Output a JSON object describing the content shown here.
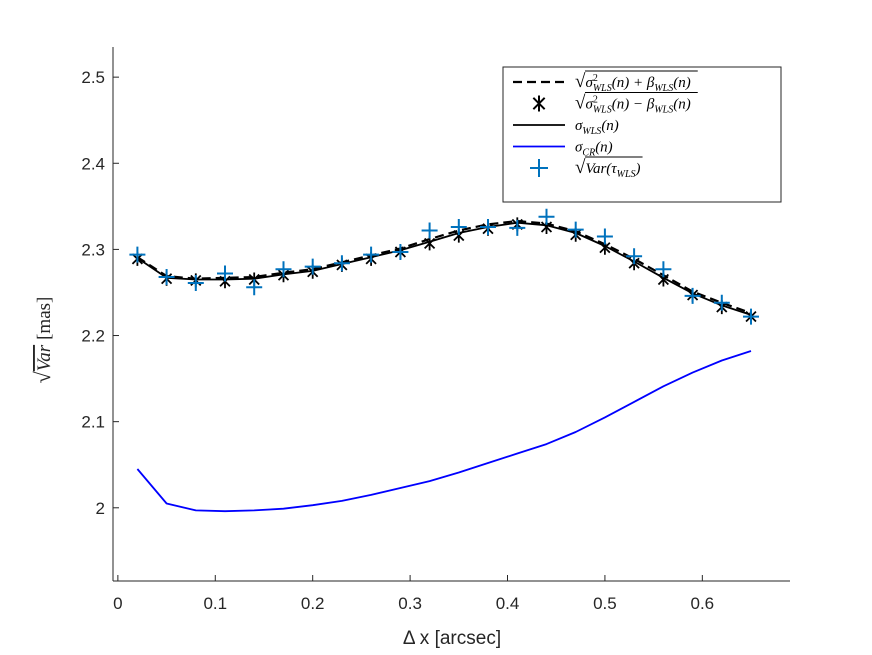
{
  "chart_data": {
    "type": "line",
    "title": "",
    "xlabel": "Δ x [arcsec]",
    "ylabel": {
      "prefix": "√",
      "var": "Var",
      "unit": "[mas]"
    },
    "xlim": [
      -0.005,
      0.69
    ],
    "ylim": [
      1.915,
      2.535
    ],
    "xticks": [
      0,
      0.1,
      0.2,
      0.3,
      0.4,
      0.5,
      0.6
    ],
    "xtick_labels": [
      "0",
      "0.1",
      "0.2",
      "0.3",
      "0.4",
      "0.5",
      "0.6"
    ],
    "yticks": [
      2,
      2.1,
      2.2,
      2.3,
      2.4,
      2.5
    ],
    "ytick_labels": [
      "2",
      "2.1",
      "2.2",
      "2.3",
      "2.4",
      "2.5"
    ],
    "grid": false,
    "legend_position": "top-right",
    "x": [
      0.02,
      0.05,
      0.08,
      0.11,
      0.14,
      0.17,
      0.2,
      0.23,
      0.26,
      0.29,
      0.32,
      0.35,
      0.38,
      0.41,
      0.44,
      0.47,
      0.5,
      0.53,
      0.56,
      0.59,
      0.62,
      0.65
    ],
    "series": [
      {
        "name": "sqrt(σ²_WLS(n) + β_WLS(n))",
        "legend": {
          "left": "σ",
          "sup": "2",
          "sub": "WLS",
          "rest": "(n) + β",
          "sub2": "WLS",
          "rest2": "(n)"
        },
        "style": "dashed",
        "marker": "none",
        "color": "#000000",
        "values": [
          2.291,
          2.269,
          2.266,
          2.267,
          2.268,
          2.273,
          2.277,
          2.285,
          2.293,
          2.301,
          2.312,
          2.322,
          2.329,
          2.333,
          2.33,
          2.321,
          2.306,
          2.289,
          2.27,
          2.251,
          2.238,
          2.226
        ]
      },
      {
        "name": "sqrt(σ²_WLS(n) − β_WLS(n))",
        "legend": {
          "left": "σ",
          "sup": "2",
          "sub": "WLS",
          "rest": "(n) − β",
          "sub2": "WLS",
          "rest2": "(n)"
        },
        "style": "none",
        "marker": "asterisk",
        "color": "#000000",
        "values": [
          2.289,
          2.266,
          2.264,
          2.263,
          2.265,
          2.27,
          2.274,
          2.282,
          2.289,
          2.297,
          2.307,
          2.316,
          2.324,
          2.329,
          2.326,
          2.317,
          2.302,
          2.284,
          2.265,
          2.247,
          2.233,
          2.222
        ]
      },
      {
        "name": "σ_WLS(n)",
        "legend": {
          "left": "σ",
          "sub": "WLS",
          "rest": "(n)"
        },
        "style": "solid",
        "marker": "none",
        "color": "#000000",
        "values": [
          2.29,
          2.267,
          2.265,
          2.265,
          2.266,
          2.271,
          2.275,
          2.283,
          2.291,
          2.299,
          2.309,
          2.319,
          2.326,
          2.331,
          2.328,
          2.319,
          2.304,
          2.286,
          2.267,
          2.249,
          2.235,
          2.224
        ]
      },
      {
        "name": "σ_CR(n)",
        "legend": {
          "left": "σ",
          "sub": "CR",
          "rest": "(n)"
        },
        "style": "solid",
        "marker": "none",
        "color": "#0000ff",
        "values": [
          2.045,
          2.005,
          1.997,
          1.996,
          1.997,
          1.999,
          2.003,
          2.008,
          2.015,
          2.023,
          2.031,
          2.041,
          2.052,
          2.063,
          2.074,
          2.088,
          2.105,
          2.123,
          2.141,
          2.157,
          2.171,
          2.182
        ]
      },
      {
        "name": "sqrt(Var(τ̂_WLS))",
        "legend": {
          "left": "Var(τ",
          "sub": "WLS",
          "rest": ")"
        },
        "style": "none",
        "marker": "plus",
        "color": "#0072bd",
        "values": [
          2.294,
          2.268,
          2.261,
          2.272,
          2.256,
          2.277,
          2.28,
          2.284,
          2.294,
          2.297,
          2.322,
          2.326,
          2.326,
          2.325,
          2.338,
          2.323,
          2.315,
          2.292,
          2.277,
          2.246,
          2.238,
          2.222
        ]
      }
    ]
  }
}
